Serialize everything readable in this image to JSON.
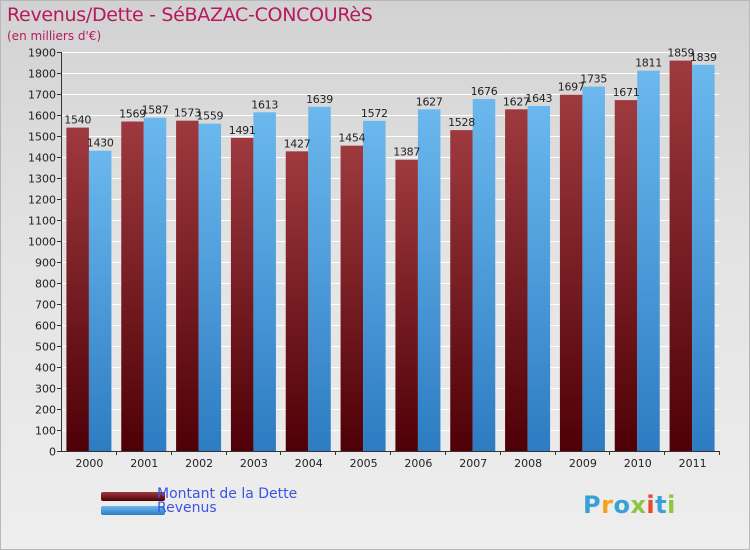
{
  "header": {
    "title": "Revenus/Dette - SéBAZAC-CONCOURèS",
    "subtitle": "(en milliers d'€)"
  },
  "colors": {
    "debt_dark": "#4e0006",
    "debt_light": "#9e3a3f",
    "revenue_dark": "#2d7cc2",
    "revenue_light": "#6bb8ee"
  },
  "legend": {
    "debt_label": "Montant de la Dette",
    "revenue_label": "Revenus"
  },
  "logo": {
    "text": "Proxiti",
    "letter_colors": [
      "#3aa0d8",
      "#f2a21b",
      "#3aa0d8",
      "#8dc63f",
      "#e8492c",
      "#3aa0d8",
      "#8dc63f"
    ]
  },
  "chart_data": {
    "type": "bar",
    "categories": [
      "2000",
      "2001",
      "2002",
      "2003",
      "2004",
      "2005",
      "2006",
      "2007",
      "2008",
      "2009",
      "2010",
      "2011"
    ],
    "series": [
      {
        "name": "Montant de la Dette",
        "values": [
          1540,
          1569,
          1573,
          1491,
          1427,
          1454,
          1387,
          1528,
          1627,
          1697,
          1671,
          1859
        ]
      },
      {
        "name": "Revenus",
        "values": [
          1430,
          1587,
          1559,
          1613,
          1639,
          1572,
          1627,
          1676,
          1643,
          1735,
          1811,
          1839
        ]
      }
    ],
    "value_labels": [
      [
        "1540",
        "1569",
        "1573",
        "1491",
        "1427",
        "1454",
        "1387",
        "1528",
        "1627",
        "1697",
        "1671",
        "1859"
      ],
      [
        "1430",
        "1587",
        "1559",
        "1613",
        "1639",
        "1572",
        "1627",
        "1676",
        "1643",
        "1735",
        "1811",
        "1839"
      ]
    ],
    "ylim": [
      0,
      1900
    ],
    "ytick_step": 100,
    "grid": true,
    "legend_position": "bottom-left"
  }
}
